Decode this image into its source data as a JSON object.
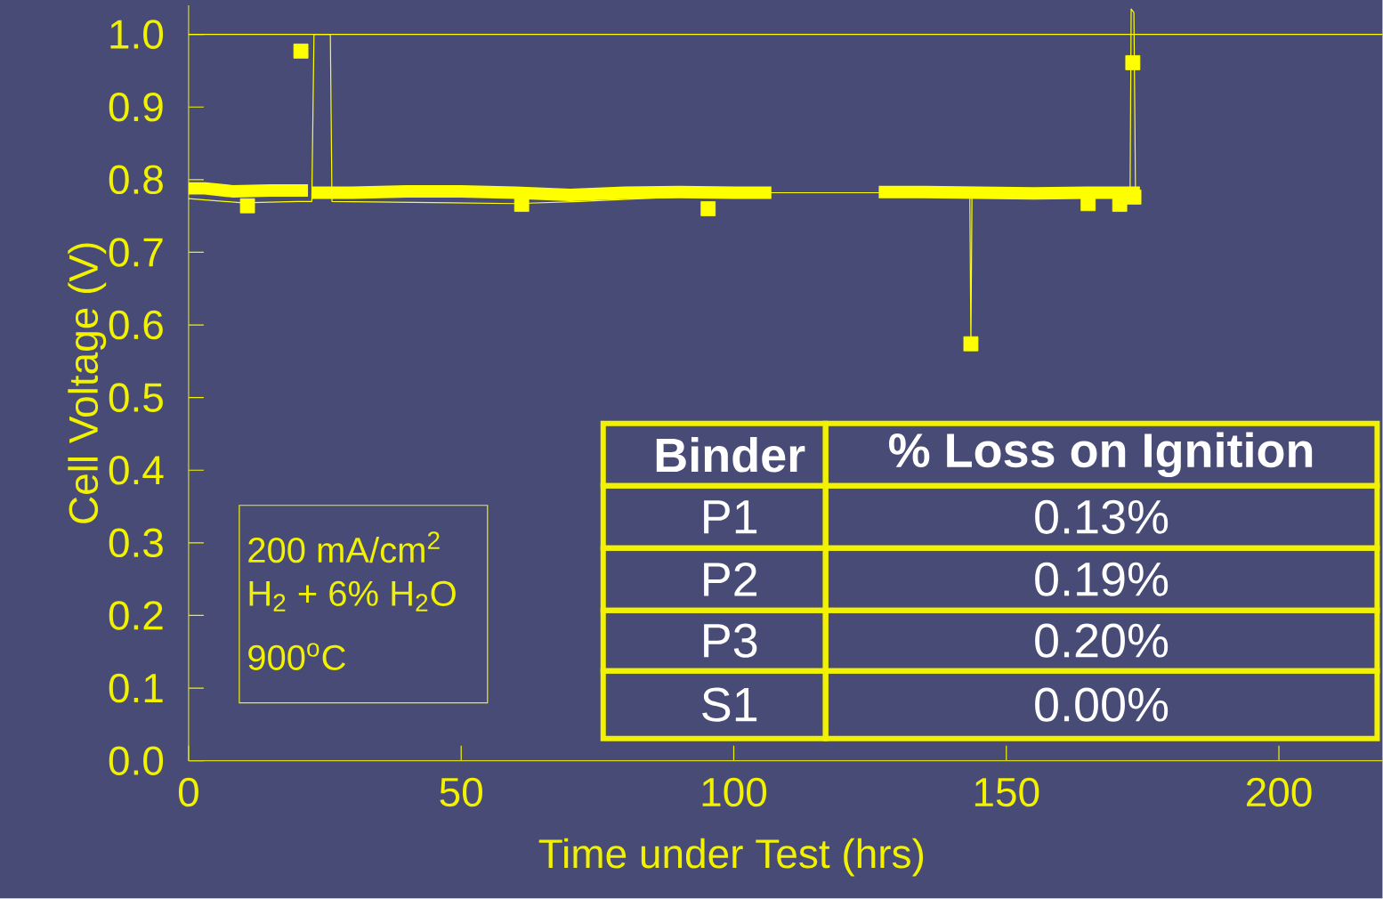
{
  "chart_data": {
    "type": "line",
    "xlabel": "Time under Test (hrs)",
    "ylabel": "Cell Voltage (V)",
    "xlim": [
      0,
      219
    ],
    "ylim": [
      0,
      1.04
    ],
    "xticks": [
      0,
      50,
      100,
      150,
      200
    ],
    "yticks": [
      {
        "value": 0,
        "label": "0.0"
      },
      {
        "value": 0.1,
        "label": "0.1"
      },
      {
        "value": 0.2,
        "label": "0.2"
      },
      {
        "value": 0.3,
        "label": "0.3"
      },
      {
        "value": 0.4,
        "label": "0.4"
      },
      {
        "value": 0.5,
        "label": "0.5"
      },
      {
        "value": 0.6,
        "label": "0.6"
      },
      {
        "value": 0.7,
        "label": "0.7"
      },
      {
        "value": 0.8,
        "label": "0.8"
      },
      {
        "value": 0.9,
        "label": "0.9"
      },
      {
        "value": 1.0,
        "label": "1.0"
      }
    ],
    "ref_lines": [
      {
        "axis": "y",
        "value": 1.0,
        "color": "#ffff00"
      }
    ],
    "grid": false,
    "series": [
      {
        "color": "#ffff00",
        "marker": "none",
        "x": [
          0,
          10,
          20,
          21.9,
          22.6,
          23.0,
          26.0,
          26.3,
          60,
          71.6,
          106.9,
          126.6,
          143.3,
          143.5,
          143.7,
          160,
          172.7,
          172.9,
          173.4,
          173.7,
          174.5
        ],
        "values": [
          0.774,
          0.768,
          0.77,
          0.77,
          0.77,
          1.0,
          1.0,
          0.77,
          0.767,
          0.77,
          0.782,
          0.782,
          0.78,
          0.574,
          0.78,
          0.78,
          0.78,
          1.035,
          1.03,
          0.78,
          0.78
        ]
      },
      {
        "color": "#ffff00",
        "marker": "none",
        "x": [
          0,
          3,
          8,
          15,
          21.9,
          22.2,
          22.6,
          30,
          40,
          50,
          60,
          70,
          80,
          90,
          100,
          106.9,
          116,
          126.6,
          135,
          145,
          155,
          165,
          174.5
        ],
        "values": [
          0.788,
          0.788,
          0.784,
          0.785,
          0.785,
          null,
          0.782,
          0.782,
          0.784,
          0.784,
          0.782,
          0.779,
          0.782,
          0.783,
          0.782,
          0.782,
          null,
          0.783,
          0.783,
          0.782,
          0.781,
          0.782,
          0.782
        ]
      },
      {
        "type": "scatter",
        "color": "#ffff00",
        "marker": "square",
        "x": [
          10.8,
          20.6,
          61.1,
          95.3,
          143.5,
          165,
          170.8,
          173.2,
          173.4
        ],
        "values": [
          0.764,
          0.977,
          0.766,
          0.76,
          0.574,
          0.767,
          0.766,
          0.961,
          0.776
        ]
      }
    ],
    "annotations": [
      "200 mA/cm$^{2}$",
      "H$_{2}$ + 6% H$_{2}$O",
      "900$^{o}$C",
      "**Binder**",
      "**% Loss on Ignition**",
      "P1",
      "0.13%",
      "P2",
      "0.19%",
      "P3",
      "0.20%",
      "S1",
      "0.00%"
    ]
  }
}
